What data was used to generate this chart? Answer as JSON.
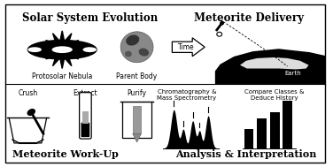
{
  "bg_color": "#ffffff",
  "border_color": "#000000",
  "title_top_left": "Solar System Evolution",
  "title_top_right": "Meteorite Delivery",
  "label_nebula": "Protosolar Nebula",
  "label_body": "Parent Body",
  "label_earth": "Earth",
  "label_time": "Time",
  "label_crush": "Crush",
  "label_extract": "Extract",
  "label_purify": "Purify",
  "label_chrom": "Chromatography &\nMass Spectrometry",
  "label_compare": "Compare Classes &\nDeduce History",
  "title_bottom_left": "Meteorite Work-Up",
  "title_bottom_right": "Analysis & Interpretation",
  "fig_w": 3.76,
  "fig_h": 1.89,
  "dpi": 100
}
